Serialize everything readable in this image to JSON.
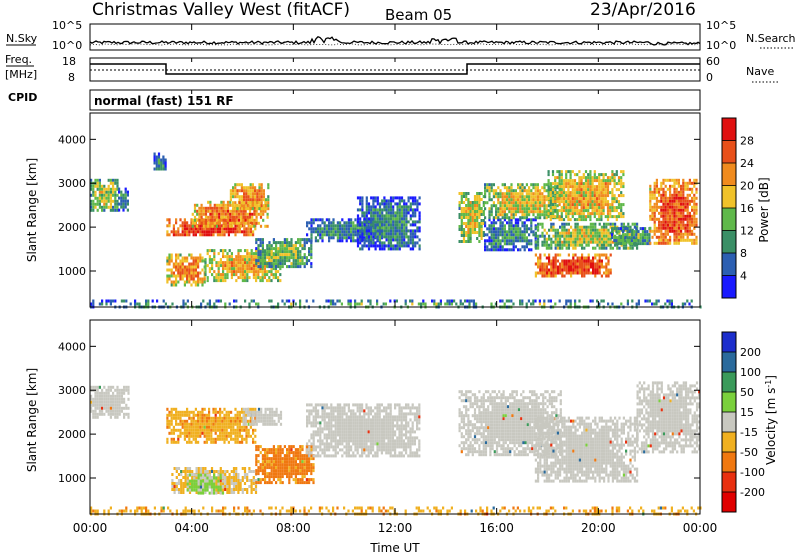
{
  "header": {
    "title": "Christmas Valley West (fitACF)",
    "beam": "Beam 05",
    "date": "23/Apr/2016"
  },
  "top_panels": {
    "nsky_label": "N.Sky",
    "nsky_ticks": [
      "10^5",
      "10^0"
    ],
    "nsearch_label": "N.Search",
    "nsearch_ticks": [
      "10^5",
      "10^0"
    ],
    "freq_label": "Freq.",
    "freq_unit": "[MHz]",
    "freq_ticks": [
      "18",
      "8"
    ],
    "nave_label": "Nave",
    "nave_ticks": [
      "60",
      "0"
    ],
    "cpid_label": "CPID",
    "cpid_text": "normal (fast) 151 RF"
  },
  "axes": {
    "ylabel": "Slant Range [km]",
    "yticks": [
      1000,
      2000,
      3000,
      4000
    ],
    "xlabel": "Time UT",
    "xticks": [
      "00:00",
      "04:00",
      "08:00",
      "12:00",
      "16:00",
      "20:00",
      "00:00"
    ]
  },
  "power_scale": {
    "label": "Power [dB]",
    "ticks": [
      "4",
      "8",
      "12",
      "16",
      "20",
      "24",
      "28"
    ],
    "colors": [
      "#1a1aff",
      "#2c5fb2",
      "#3a8f66",
      "#5fb84a",
      "#f0c22a",
      "#f08b1e",
      "#e8501a",
      "#e01010"
    ]
  },
  "velocity_scale": {
    "label": "Velocity [m s^-1]",
    "ticks": [
      "200",
      "100",
      "50",
      "15",
      "-15",
      "-50",
      "-100",
      "-200"
    ],
    "colors": [
      "#1c2ecc",
      "#2a6a9c",
      "#3a9a5a",
      "#7ad03c",
      "#c8c8c0",
      "#f0b020",
      "#f07810",
      "#e83010",
      "#e00000"
    ]
  },
  "chart_data": [
    {
      "type": "heatmap",
      "variable": "power",
      "x_range_hours": [
        0,
        24
      ],
      "y_range_km": [
        180,
        4600
      ],
      "regions": [
        {
          "t": [
            0.0,
            1.1
          ],
          "r": [
            2400,
            3100
          ],
          "level": 16
        },
        {
          "t": [
            1.1,
            1.5
          ],
          "r": [
            2400,
            2900
          ],
          "level": 10
        },
        {
          "t": [
            2.5,
            3.0
          ],
          "r": [
            3300,
            3700
          ],
          "level": 10
        },
        {
          "t": [
            3.0,
            6.5
          ],
          "r": [
            1800,
            2200
          ],
          "level": 28
        },
        {
          "t": [
            4.0,
            7.0
          ],
          "r": [
            2000,
            2600
          ],
          "level": 24
        },
        {
          "t": [
            5.5,
            7.0
          ],
          "r": [
            2400,
            3000
          ],
          "level": 22
        },
        {
          "t": [
            3.0,
            4.5
          ],
          "r": [
            700,
            1400
          ],
          "level": 22
        },
        {
          "t": [
            4.5,
            7.5
          ],
          "r": [
            800,
            1500
          ],
          "level": 20
        },
        {
          "t": [
            6.5,
            8.7
          ],
          "r": [
            1100,
            1750
          ],
          "level": 14
        },
        {
          "t": [
            8.5,
            11.5
          ],
          "r": [
            1700,
            2200
          ],
          "level": 10
        },
        {
          "t": [
            10.5,
            13.0
          ],
          "r": [
            1500,
            2700
          ],
          "level": 9
        },
        {
          "t": [
            14.5,
            15.5
          ],
          "r": [
            1700,
            2800
          ],
          "level": 18
        },
        {
          "t": [
            15.5,
            17.5
          ],
          "r": [
            1500,
            2200
          ],
          "level": 10
        },
        {
          "t": [
            15.5,
            18.5
          ],
          "r": [
            2200,
            3000
          ],
          "level": 18
        },
        {
          "t": [
            18.0,
            21.0
          ],
          "r": [
            2200,
            3300
          ],
          "level": 20
        },
        {
          "t": [
            17.5,
            21.5
          ],
          "r": [
            1500,
            2100
          ],
          "level": 16
        },
        {
          "t": [
            17.5,
            20.5
          ],
          "r": [
            900,
            1400
          ],
          "level": 28
        },
        {
          "t": [
            20.5,
            22.0
          ],
          "r": [
            1600,
            2000
          ],
          "level": 12
        },
        {
          "t": [
            22.0,
            23.9
          ],
          "r": [
            1600,
            3100
          ],
          "level": 26
        },
        {
          "t": [
            0.0,
            24.0
          ],
          "r": [
            180,
            350
          ],
          "level": 12
        }
      ]
    },
    {
      "type": "heatmap",
      "variable": "velocity",
      "x_range_hours": [
        0,
        24
      ],
      "y_range_km": [
        180,
        4600
      ],
      "regions": [
        {
          "t": [
            0.0,
            1.5
          ],
          "r": [
            2400,
            3100
          ],
          "value": 0
        },
        {
          "t": [
            3.0,
            6.5
          ],
          "r": [
            1800,
            2600
          ],
          "value": -40
        },
        {
          "t": [
            6.0,
            7.5
          ],
          "r": [
            2200,
            2600
          ],
          "value": 0
        },
        {
          "t": [
            3.2,
            6.5
          ],
          "r": [
            650,
            1250
          ],
          "value": -20
        },
        {
          "t": [
            3.8,
            5.2
          ],
          "r": [
            650,
            1100
          ],
          "value": 20
        },
        {
          "t": [
            6.5,
            8.8
          ],
          "r": [
            900,
            1750
          ],
          "value": -60
        },
        {
          "t": [
            8.5,
            13.0
          ],
          "r": [
            1500,
            2700
          ],
          "value": 0
        },
        {
          "t": [
            14.5,
            18.5
          ],
          "r": [
            1500,
            3000
          ],
          "value": 0
        },
        {
          "t": [
            17.5,
            21.5
          ],
          "r": [
            900,
            2400
          ],
          "value": 0
        },
        {
          "t": [
            21.5,
            24.0
          ],
          "r": [
            1600,
            3200
          ],
          "value": 0
        },
        {
          "t": [
            0.0,
            24.0
          ],
          "r": [
            180,
            350
          ],
          "value": -40
        }
      ]
    }
  ],
  "mark_names": {
    "power_cell": "power-cell",
    "velocity_cell": "velocity-cell"
  }
}
